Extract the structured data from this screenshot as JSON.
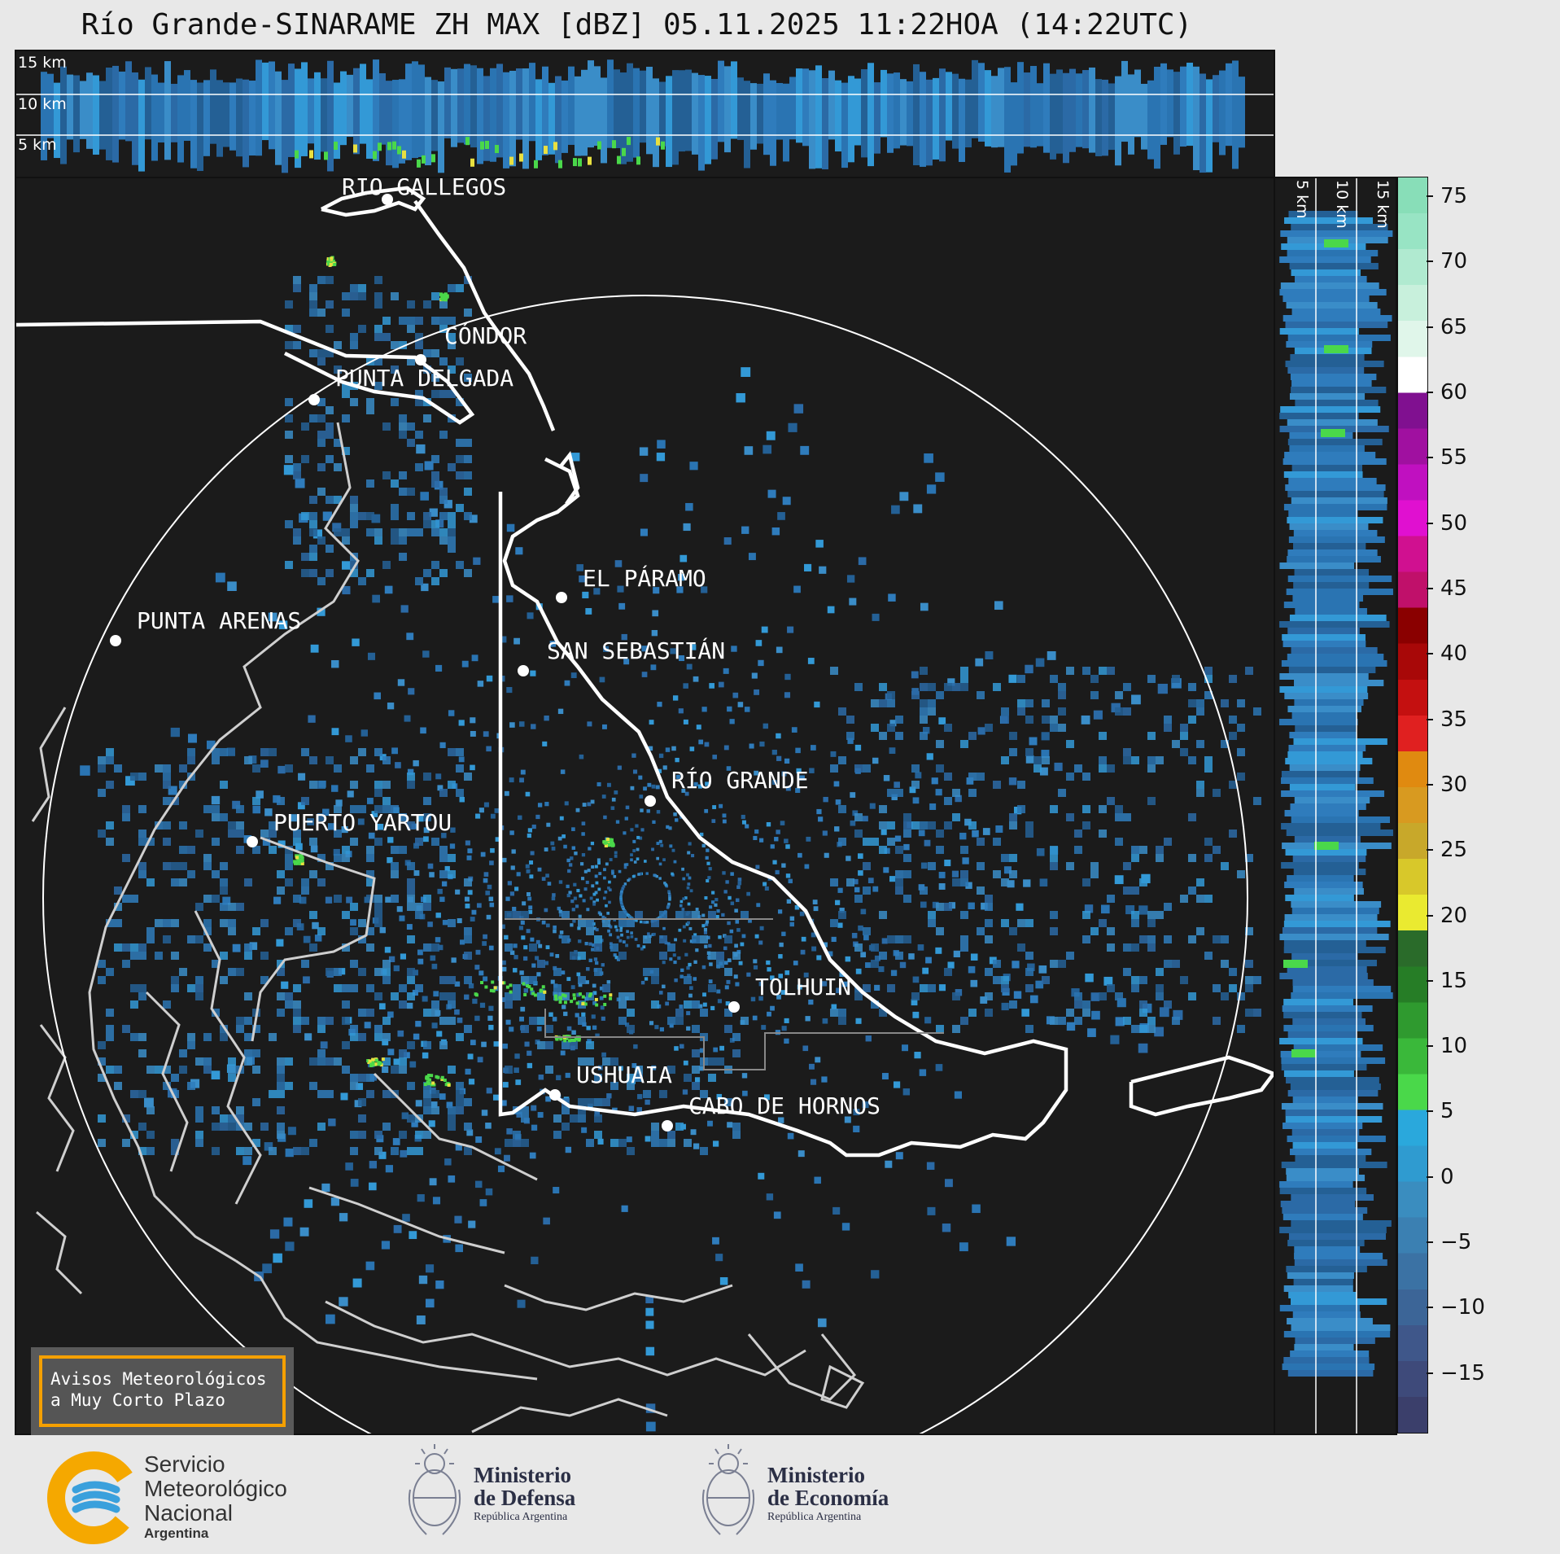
{
  "title": "Río Grande-SINARAME ZH MAX [dBZ] 05.11.2025 11:22HOA (14:22UTC)",
  "altitude_labels": [
    "15 km",
    "10 km",
    "5 km"
  ],
  "cities": [
    {
      "name": "RÍO GALLEGOS"
    },
    {
      "name": "CÓNDOR"
    },
    {
      "name": "PUNTA DELGADA"
    },
    {
      "name": "EL PÁRAMO"
    },
    {
      "name": "SAN SEBASTIÁN"
    },
    {
      "name": "PUNTA ARENAS"
    },
    {
      "name": "RÍO GRANDE"
    },
    {
      "name": "PUERTO YARTOU"
    },
    {
      "name": "TOLHUIN"
    },
    {
      "name": "USHUAIA"
    },
    {
      "name": "CABO DE HORNOS"
    }
  ],
  "colorbar": {
    "ticks": [
      "75",
      "70",
      "65",
      "60",
      "55",
      "50",
      "45",
      "40",
      "35",
      "30",
      "25",
      "20",
      "15",
      "10",
      "5",
      "0",
      "−5",
      "−10",
      "−15"
    ],
    "range": [
      -19.5,
      76.5
    ],
    "colors": [
      "#3b3f6b",
      "#3e4a7a",
      "#3f578a",
      "#3c6597",
      "#3b72a4",
      "#3b80b2",
      "#3a8dbf",
      "#2f9bd0",
      "#2aa8dc",
      "#4ad84a",
      "#3ab83a",
      "#2f9a2f",
      "#267d26",
      "#2a6b2a",
      "#eaea30",
      "#d8c82a",
      "#c8a82a",
      "#d89a20",
      "#e08a10",
      "#e02020",
      "#c41010",
      "#a80808",
      "#8a0000",
      "#c0106a",
      "#d01090",
      "#e010d0",
      "#c010c0",
      "#a010a0",
      "#801090",
      "#ffffff",
      "#e0f6ea",
      "#c8f0dc",
      "#b0ead0",
      "#98e4c4",
      "#88deb8"
    ]
  },
  "notice": {
    "line1": "Avisos Meteorológicos",
    "line2": "a Muy Corto Plazo"
  },
  "footer": {
    "smn_line1": "Servicio",
    "smn_line2": "Meteorológico",
    "smn_line3": "Nacional",
    "smn_line4": "Argentina",
    "defensa_line1": "Ministerio",
    "defensa_line2": "de Defensa",
    "defensa_line3": "República Argentina",
    "economia_line1": "Ministerio",
    "economia_line2": "de Economía",
    "economia_line3": "República Argentina"
  }
}
